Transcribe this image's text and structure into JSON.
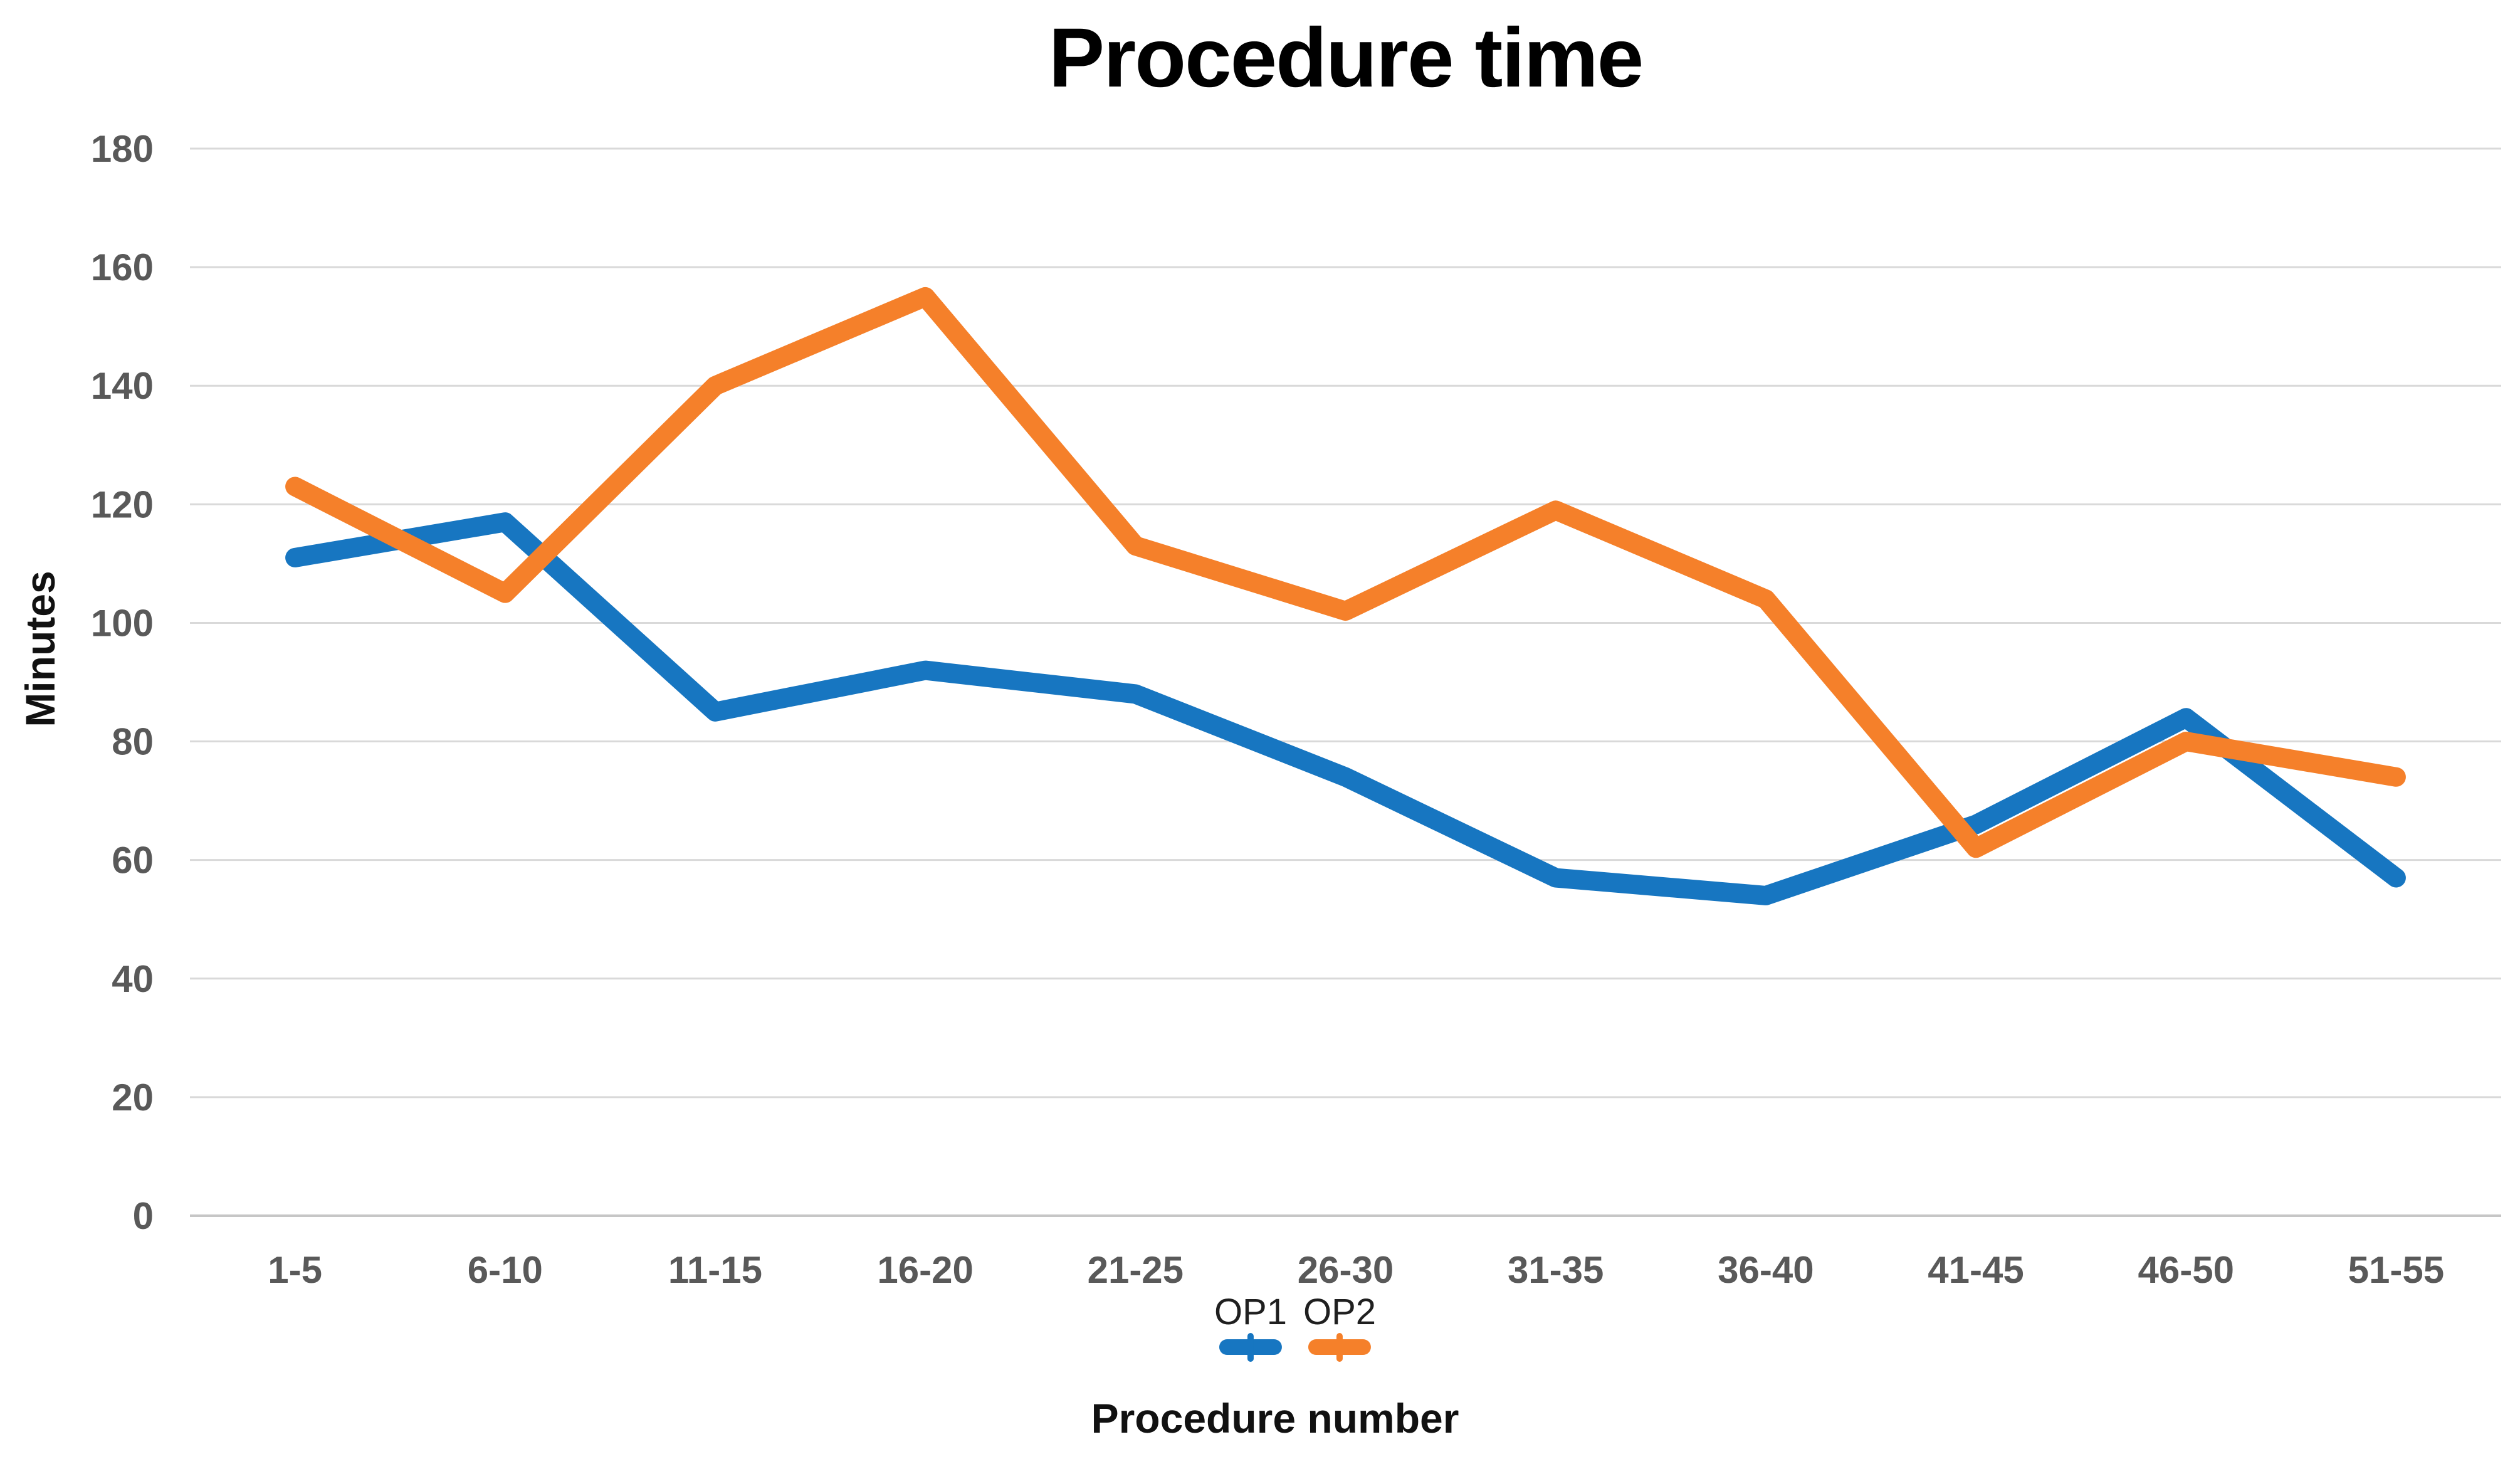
{
  "title": "Procedure time",
  "chart_data": {
    "type": "line",
    "title": "Procedure time",
    "xlabel": "Procedure number",
    "ylabel": "Minutes",
    "categories": [
      "1-5",
      "6-10",
      "11-15",
      "16-20",
      "21-25",
      "26-30",
      "31-35",
      "36-40",
      "41-45",
      "46-50",
      "51-55"
    ],
    "series": [
      {
        "name": "OP1",
        "color": "#1776C1",
        "values": [
          111,
          117,
          85,
          92,
          88,
          74,
          57,
          54,
          66,
          84,
          57
        ]
      },
      {
        "name": "OP2",
        "color": "#F5802A",
        "values": [
          123,
          105,
          140,
          155,
          113,
          102,
          119,
          104,
          62,
          80,
          74
        ]
      }
    ],
    "ylim": [
      0,
      180
    ],
    "y_ticks": [
      0,
      20,
      40,
      60,
      80,
      100,
      120,
      140,
      160,
      180
    ],
    "grid": "horizontal",
    "legend_position": "bottom-center"
  },
  "style": {
    "gridline_color": "#D9D9D9",
    "baseline_color": "#C6C6C6",
    "tick_label_color": "#595959"
  }
}
